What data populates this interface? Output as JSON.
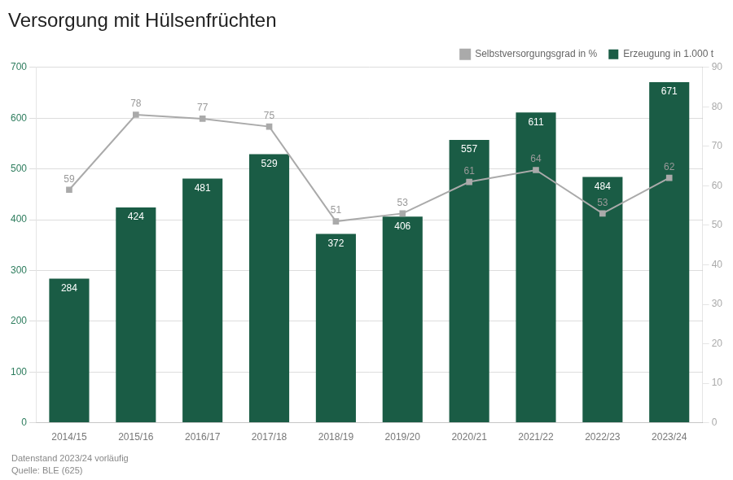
{
  "chart_data": {
    "type": "bar",
    "title": "Versorgung mit Hülsenfrüchten",
    "categories": [
      "2014/15",
      "2015/16",
      "2016/17",
      "2017/18",
      "2018/19",
      "2019/20",
      "2020/21",
      "2021/22",
      "2022/23",
      "2023/24"
    ],
    "series": [
      {
        "name": "Erzeugung in 1.000 t",
        "type": "bar",
        "color": "#1a5c45",
        "values": [
          284,
          424,
          481,
          529,
          372,
          406,
          557,
          611,
          484,
          671
        ]
      },
      {
        "name": "Selbstversorgungsgrad in %",
        "type": "line",
        "color": "#aaaaaa",
        "marker": "square",
        "axis": "y2",
        "values": [
          59,
          78,
          77,
          75,
          51,
          53,
          61,
          64,
          53,
          62
        ]
      }
    ],
    "ylim": [
      0,
      700
    ],
    "yticks": [
      0,
      100,
      200,
      300,
      400,
      500,
      600,
      700
    ],
    "y2lim": [
      0,
      90
    ],
    "y2ticks": [
      0,
      10,
      20,
      30,
      40,
      50,
      60,
      70,
      80,
      90
    ],
    "grid": true,
    "legend": "upper right",
    "data_labels": true,
    "annotations": [
      "Datenstand 2023/24 vorläufig",
      "Quelle: BLE (625)"
    ]
  }
}
